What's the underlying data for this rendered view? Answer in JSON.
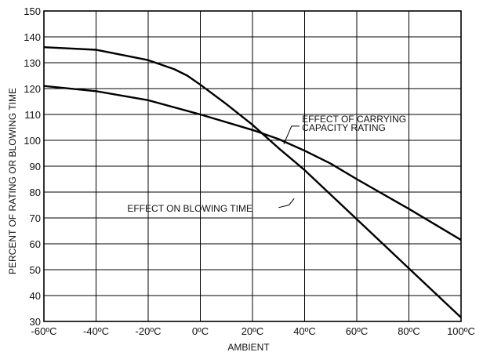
{
  "chart_data": {
    "type": "line",
    "xlabel": "AMBIENT",
    "ylabel": "PERCENT OF RATING OR BLOWING TIME",
    "xlim": [
      -60,
      100
    ],
    "ylim": [
      30,
      150
    ],
    "x_ticks": [
      -60,
      -40,
      -20,
      0,
      20,
      40,
      60,
      80,
      100
    ],
    "x_tick_labels": [
      "-60ºC",
      "-40ºC",
      "-20ºC",
      "0ºC",
      "20ºC",
      "40ºC",
      "60ºC",
      "80ºC",
      "100ºC"
    ],
    "y_ticks": [
      30,
      40,
      50,
      60,
      70,
      80,
      90,
      100,
      110,
      120,
      130,
      140,
      150
    ],
    "y_tick_labels": [
      "30",
      "40",
      "50",
      "60",
      "70",
      "80",
      "90",
      "100",
      "110",
      "120",
      "130",
      "140",
      "150"
    ],
    "grid": true,
    "series": [
      {
        "name": "EFFECT OF CARRYING CAPACITY RATING",
        "x": [
          -60,
          -40,
          -20,
          0,
          20,
          30,
          40,
          50,
          60,
          80,
          100
        ],
        "y": [
          121,
          119,
          115.5,
          110,
          104,
          100.5,
          96,
          91,
          85,
          73.5,
          61.5
        ]
      },
      {
        "name": "EFFECT ON BLOWING TIME",
        "x": [
          -60,
          -40,
          -30,
          -20,
          -10,
          -5,
          0,
          10,
          20,
          30,
          40,
          60,
          80,
          100
        ],
        "y": [
          136,
          135,
          133,
          131,
          127.5,
          125,
          121.5,
          114,
          106,
          97,
          88.5,
          69.5,
          50.5,
          31.5
        ]
      }
    ],
    "annotations": [
      {
        "lines": [
          "EFFECT OF CARRYING",
          "CAPACITY RATING"
        ],
        "series": 0
      },
      {
        "lines": [
          "EFFECT ON BLOWING  TIME"
        ],
        "series": 1
      }
    ]
  }
}
